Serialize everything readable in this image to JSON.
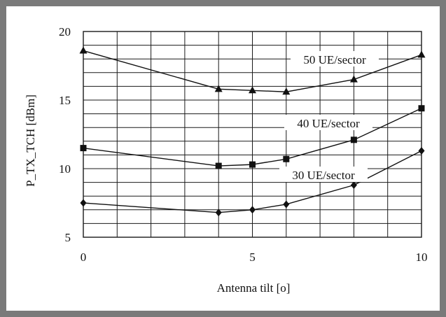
{
  "chart_data": {
    "type": "line",
    "title": "",
    "xlabel": "Antenna tilt [o]",
    "ylabel": "P_TX_TCH [dBm]",
    "xlim": [
      0,
      10
    ],
    "ylim": [
      5,
      20
    ],
    "x_ticks": [
      "0",
      "5",
      "10"
    ],
    "y_ticks": [
      "5",
      "10",
      "15",
      "20"
    ],
    "grid": true,
    "legend": "none (inline labels)",
    "series": [
      {
        "name": "50 UE/sector",
        "marker": "triangle",
        "x": [
          0,
          4,
          5,
          6,
          8,
          10
        ],
        "y": [
          18.6,
          15.8,
          15.7,
          15.6,
          16.5,
          18.3
        ]
      },
      {
        "name": "40 UE/sector",
        "marker": "square",
        "x": [
          0,
          4,
          5,
          6,
          8,
          10
        ],
        "y": [
          11.5,
          10.2,
          10.3,
          10.7,
          12.1,
          14.4
        ]
      },
      {
        "name": "30 UE/sector",
        "marker": "diamond",
        "x": [
          0,
          4,
          5,
          6,
          8,
          10
        ],
        "y": [
          7.5,
          6.8,
          7.0,
          7.4,
          8.8,
          11.3
        ]
      }
    ]
  },
  "colors": {
    "frame": "#7a7a7a",
    "grid": "#1a1a1a",
    "series": "#111111"
  }
}
